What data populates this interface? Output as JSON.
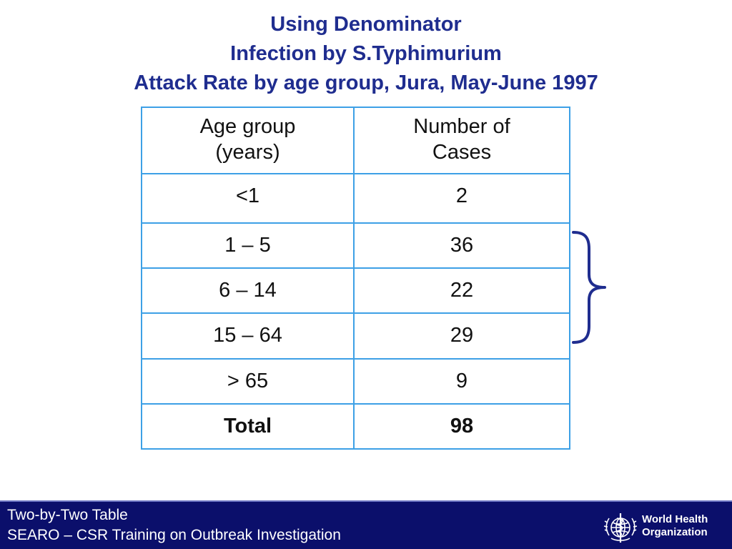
{
  "title": {
    "line1": "Using Denominator",
    "line2": "Infection by S.Typhimurium",
    "line3": "Attack Rate by age group, Jura, May-June 1997"
  },
  "table": {
    "headers": [
      [
        "Age group",
        "(years)"
      ],
      [
        "Number of",
        "Cases"
      ]
    ],
    "rows": [
      [
        "<1",
        "2"
      ],
      [
        "1 – 5",
        "36"
      ],
      [
        "6 – 14",
        "22"
      ],
      [
        "15 – 64",
        "29"
      ],
      [
        "> 65",
        "9"
      ]
    ],
    "total": [
      "Total",
      "98"
    ]
  },
  "footer": {
    "line1": "Two-by-Two Table",
    "line2": "SEARO – CSR Training on Outbreak Investigation",
    "logo_line1": "World Health",
    "logo_line2": "Organization",
    "logo_icon": "who-emblem-icon"
  },
  "colors": {
    "title": "#1f2d8f",
    "table_border": "#3da0e6",
    "footer_bg": "#0b0f6b",
    "brace": "#1f2d8f"
  }
}
